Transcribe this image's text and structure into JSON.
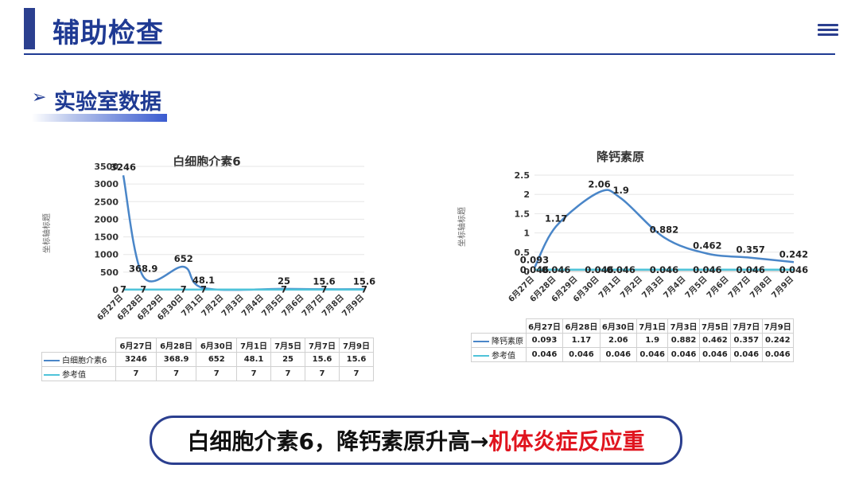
{
  "page": {
    "title": "辅助检查"
  },
  "section": {
    "arrow": "➢",
    "title": "实验室数据"
  },
  "colors": {
    "accent": "#1f3a93",
    "series1": "#4a86c8",
    "series2": "#4fc3d9",
    "highlight": "#e0141e"
  },
  "chart_data": [
    {
      "type": "line",
      "title": "白细胞介素6",
      "ylabel": "坐标轴标题",
      "ylim": [
        0,
        3500
      ],
      "yticks": [
        "3500",
        "3000",
        "2500",
        "2000",
        "1500",
        "1000",
        "500",
        "0"
      ],
      "categories": [
        "6月27日",
        "6月28日",
        "6月29日",
        "6月30日",
        "7月1日",
        "7月2日",
        "7月3日",
        "7月4日",
        "7月5日",
        "7月6日",
        "7月7日",
        "7月8日",
        "7月9日"
      ],
      "series": [
        {
          "name": "白细胞介素6",
          "values": [
            3246,
            368.9,
            null,
            652,
            48.1,
            null,
            null,
            null,
            25,
            null,
            15.6,
            null,
            15.6
          ],
          "labels": [
            "3246",
            "368.9",
            "",
            "652",
            "48.1",
            "",
            "",
            "",
            "25",
            "",
            "15.6",
            "",
            "15.6"
          ]
        },
        {
          "name": "参考值",
          "values": [
            7,
            7,
            null,
            7,
            7,
            null,
            null,
            null,
            7,
            null,
            7,
            null,
            7
          ],
          "labels": [
            "7",
            "7",
            "",
            "7",
            "7",
            "",
            "",
            "",
            "7",
            "",
            "7",
            "",
            "7"
          ]
        }
      ],
      "table": {
        "headers": [
          "6月27日",
          "6月28日",
          "6月30日",
          "7月1日",
          "7月5日",
          "7月7日",
          "7月9日"
        ],
        "rows": [
          {
            "name": "白细胞介素6",
            "cells": [
              "3246",
              "368.9",
              "652",
              "48.1",
              "25",
              "15.6",
              "15.6"
            ]
          },
          {
            "name": "参考值",
            "cells": [
              "7",
              "7",
              "7",
              "7",
              "7",
              "7",
              "7"
            ]
          }
        ]
      }
    },
    {
      "type": "line",
      "title": "降钙素原",
      "ylabel": "坐标轴标题",
      "ylim": [
        0,
        2.5
      ],
      "yticks": [
        "2.5",
        "2",
        "1.5",
        "1",
        "0.5",
        "0"
      ],
      "categories": [
        "6月27日",
        "6月28日",
        "6月29日",
        "6月30日",
        "7月1日",
        "7月2日",
        "7月3日",
        "7月4日",
        "7月5日",
        "7月6日",
        "7月7日",
        "7月8日",
        "7月9日"
      ],
      "series": [
        {
          "name": "降钙素原",
          "values": [
            0.093,
            1.17,
            null,
            2.06,
            1.9,
            null,
            0.882,
            null,
            0.462,
            null,
            0.357,
            null,
            0.242
          ],
          "labels": [
            "0.093",
            "1.17",
            "",
            "2.06",
            "1.9",
            "",
            "0.882",
            "",
            "0.462",
            "",
            "0.357",
            "",
            "0.242"
          ]
        },
        {
          "name": "参考值",
          "values": [
            0.046,
            0.046,
            null,
            0.046,
            0.046,
            null,
            0.046,
            null,
            0.046,
            null,
            0.046,
            null,
            0.046
          ],
          "labels": [
            "0.046",
            "0.046",
            "",
            "0.046",
            "0.046",
            "",
            "0.046",
            "",
            "0.046",
            "",
            "0.046",
            "",
            "0.046"
          ]
        }
      ],
      "table": {
        "headers": [
          "6月27日",
          "6月28日",
          "6月30日",
          "7月1日",
          "7月3日",
          "7月5日",
          "7月7日",
          "7月9日"
        ],
        "rows": [
          {
            "name": "降钙素原",
            "cells": [
              "0.093",
              "1.17",
              "2.06",
              "1.9",
              "0.882",
              "0.462",
              "0.357",
              "0.242"
            ]
          },
          {
            "name": "参考值",
            "cells": [
              "0.046",
              "0.046",
              "0.046",
              "0.046",
              "0.046",
              "0.046",
              "0.046",
              "0.046"
            ]
          }
        ]
      }
    }
  ],
  "conclusion": {
    "part1": "白细胞介素6，降钙素原升高→",
    "part2": "机体炎症反应重"
  }
}
